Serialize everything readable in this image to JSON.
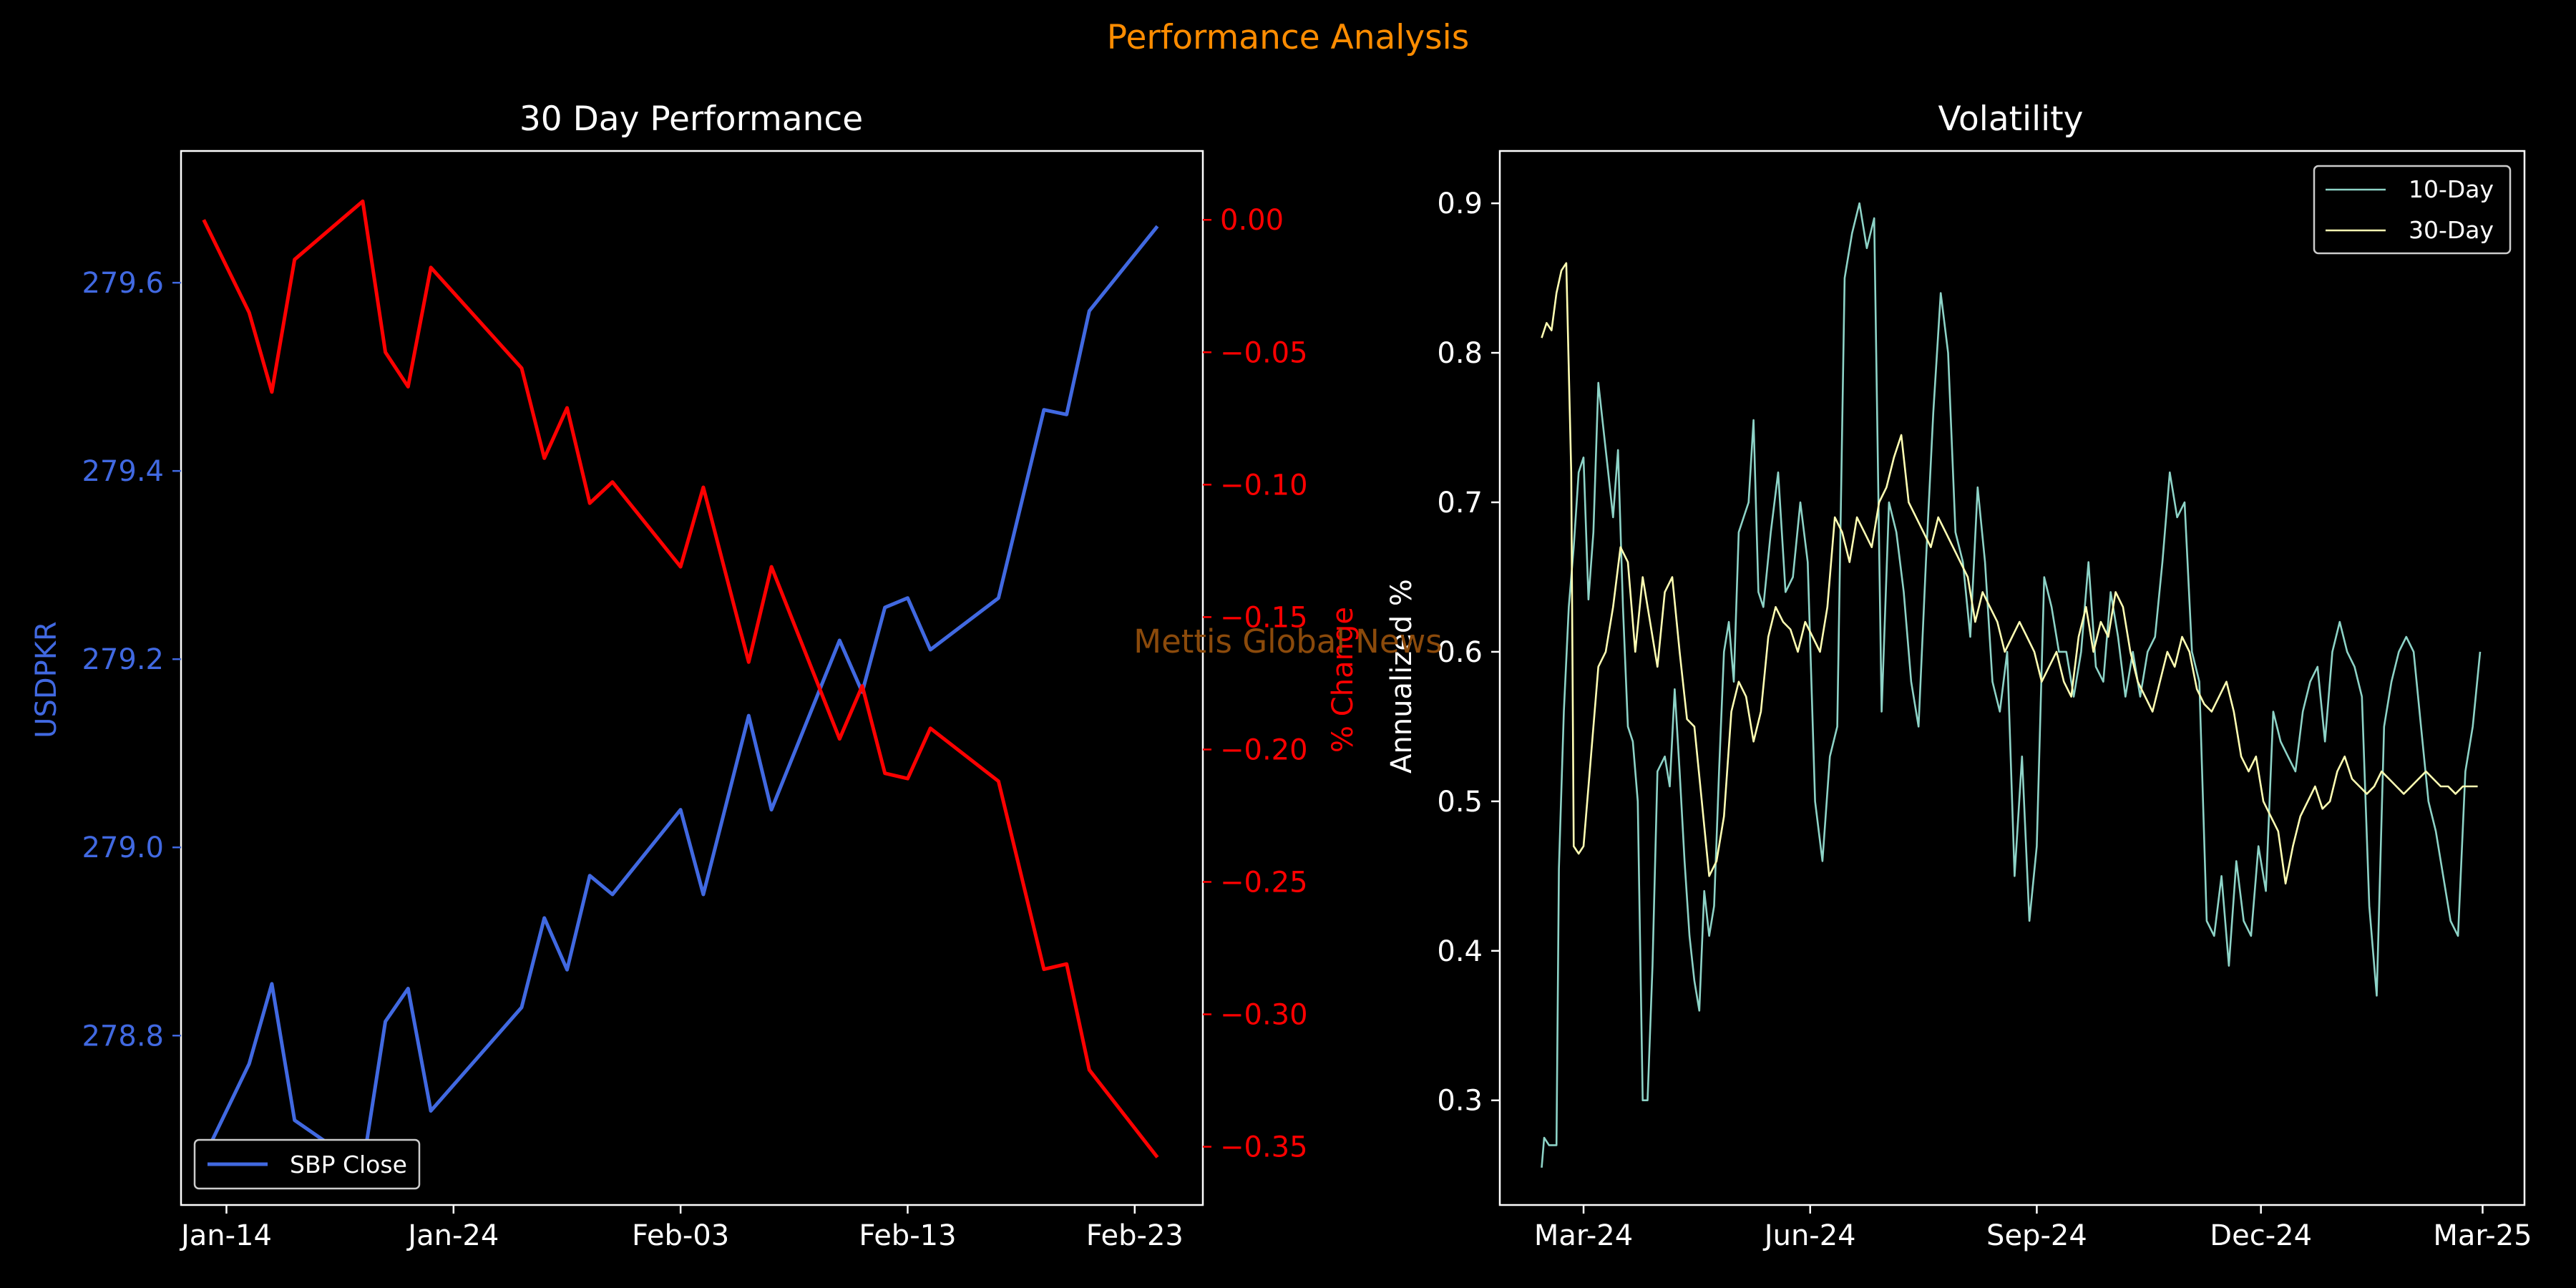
{
  "figure": {
    "title": "Performance Analysis",
    "watermark": "Mettis Global News",
    "background": "#000000",
    "title_color": "#ff8c00",
    "watermark_color": "#8b4a0b"
  },
  "chart_data": [
    {
      "type": "line",
      "title": "30 Day Performance",
      "xlabel": "",
      "ylabel": "USDPKR",
      "ylabel_right": "% Change",
      "x_ticks": [
        "Jan-14",
        "Jan-24",
        "Feb-03",
        "Feb-13",
        "Feb-23"
      ],
      "x_tick_days": [
        0,
        10,
        20,
        30,
        40
      ],
      "xlim_days": [
        -2,
        43
      ],
      "y_ticks": [
        "278.8",
        "279.0",
        "279.2",
        "279.4",
        "279.6"
      ],
      "ylim": [
        278.62,
        279.74
      ],
      "y2_ticks": [
        "0.00",
        "−0.05",
        "−0.10",
        "−0.15",
        "−0.20",
        "−0.25",
        "−0.30",
        "−0.35"
      ],
      "y2lim": [
        -0.372,
        0.026
      ],
      "legend": {
        "position": "lower-left",
        "entries": [
          "SBP Close"
        ]
      },
      "series": [
        {
          "name": "SBP Close",
          "axis": "left",
          "color": "#4169e1",
          "x_days": [
            -1,
            1,
            2,
            3,
            6,
            7,
            8,
            9,
            13,
            14,
            15,
            16,
            17,
            20,
            21,
            23,
            24,
            27,
            28,
            29,
            30,
            31,
            34,
            36,
            37,
            38,
            41
          ],
          "values": [
            278.67,
            278.77,
            278.855,
            278.71,
            278.66,
            278.815,
            278.85,
            278.72,
            278.83,
            278.925,
            278.87,
            278.97,
            278.95,
            279.04,
            278.95,
            279.14,
            279.04,
            279.22,
            279.165,
            279.255,
            279.265,
            279.21,
            279.265,
            279.465,
            279.46,
            279.57,
            279.66
          ]
        },
        {
          "name": "% Change",
          "axis": "right",
          "color": "#ff0000",
          "x_days": [
            -1,
            1,
            2,
            3,
            6,
            7,
            8,
            9,
            13,
            14,
            15,
            16,
            17,
            20,
            21,
            23,
            24,
            27,
            28,
            29,
            30,
            31,
            34,
            36,
            37,
            38,
            41
          ],
          "values": [
            0.0,
            -0.035,
            -0.065,
            -0.015,
            0.007,
            -0.05,
            -0.063,
            -0.018,
            -0.056,
            -0.09,
            -0.071,
            -0.107,
            -0.099,
            -0.131,
            -0.101,
            -0.167,
            -0.131,
            -0.196,
            -0.176,
            -0.209,
            -0.211,
            -0.192,
            -0.212,
            -0.283,
            -0.281,
            -0.321,
            -0.354
          ]
        }
      ]
    },
    {
      "type": "line",
      "title": "Volatility",
      "xlabel": "",
      "ylabel": "Annualized %",
      "x_ticks": [
        "Mar-24",
        "Jun-24",
        "Sep-24",
        "Dec-24",
        "Mar-25"
      ],
      "x_tick_days": [
        0,
        92,
        184,
        275,
        365
      ],
      "xlim_days": [
        -34,
        382
      ],
      "y_ticks": [
        "0.3",
        "0.4",
        "0.5",
        "0.6",
        "0.7",
        "0.8",
        "0.9"
      ],
      "ylim": [
        0.23,
        0.935
      ],
      "legend": {
        "position": "upper-right",
        "entries": [
          "10-Day",
          "30-Day"
        ]
      },
      "series": [
        {
          "name": "10-Day",
          "color": "#8dd3c7",
          "x_days": [
            -17,
            -16,
            -14,
            -11,
            -10,
            -8,
            -6,
            -4,
            -2,
            0,
            2,
            4,
            6,
            8,
            10,
            12,
            14,
            16,
            18,
            20,
            22,
            24,
            26,
            28,
            30,
            33,
            35,
            37,
            39,
            41,
            43,
            45,
            47,
            49,
            51,
            53,
            55,
            57,
            59,
            61,
            63,
            65,
            67,
            69,
            71,
            73,
            76,
            79,
            82,
            85,
            88,
            91,
            94,
            97,
            100,
            103,
            106,
            109,
            112,
            115,
            118,
            121,
            124,
            127,
            130,
            133,
            136,
            139,
            142,
            145,
            148,
            151,
            154,
            157,
            160,
            163,
            166,
            169,
            172,
            175,
            178,
            181,
            184,
            187,
            190,
            193,
            196,
            199,
            202,
            205,
            208,
            211,
            214,
            217,
            220,
            223,
            226,
            229,
            232,
            235,
            238,
            241,
            244,
            247,
            250,
            253,
            256,
            259,
            262,
            265,
            268,
            271,
            274,
            277,
            280,
            283,
            286,
            289,
            292,
            295,
            298,
            301,
            304,
            307,
            310,
            313,
            316,
            319,
            322,
            325,
            328,
            331,
            334,
            337,
            340,
            343,
            346,
            349,
            352,
            355,
            358,
            361,
            364
          ],
          "values": [
            0.255,
            0.275,
            0.27,
            0.27,
            0.455,
            0.56,
            0.63,
            0.67,
            0.72,
            0.73,
            0.635,
            0.68,
            0.78,
            0.75,
            0.72,
            0.69,
            0.735,
            0.63,
            0.55,
            0.54,
            0.5,
            0.3,
            0.3,
            0.39,
            0.52,
            0.53,
            0.51,
            0.575,
            0.52,
            0.46,
            0.41,
            0.38,
            0.36,
            0.44,
            0.41,
            0.43,
            0.52,
            0.6,
            0.62,
            0.58,
            0.68,
            0.69,
            0.7,
            0.755,
            0.64,
            0.63,
            0.68,
            0.72,
            0.64,
            0.65,
            0.7,
            0.66,
            0.5,
            0.46,
            0.53,
            0.55,
            0.85,
            0.88,
            0.9,
            0.87,
            0.89,
            0.56,
            0.7,
            0.68,
            0.64,
            0.58,
            0.55,
            0.66,
            0.76,
            0.84,
            0.8,
            0.68,
            0.66,
            0.61,
            0.71,
            0.66,
            0.58,
            0.56,
            0.6,
            0.45,
            0.53,
            0.42,
            0.47,
            0.65,
            0.63,
            0.6,
            0.6,
            0.57,
            0.6,
            0.66,
            0.59,
            0.58,
            0.64,
            0.61,
            0.57,
            0.6,
            0.57,
            0.6,
            0.61,
            0.66,
            0.72,
            0.69,
            0.7,
            0.6,
            0.58,
            0.42,
            0.41,
            0.45,
            0.39,
            0.46,
            0.42,
            0.41,
            0.47,
            0.44,
            0.56,
            0.54,
            0.53,
            0.52,
            0.56,
            0.58,
            0.59,
            0.54,
            0.6,
            0.62,
            0.6,
            0.59,
            0.57,
            0.43,
            0.37,
            0.55,
            0.58,
            0.6,
            0.61,
            0.6,
            0.55,
            0.5,
            0.48,
            0.45,
            0.42,
            0.41,
            0.52,
            0.55,
            0.6
          ]
        },
        {
          "name": "30-Day",
          "color": "#ffffb3",
          "x_days": [
            -17,
            -15,
            -13,
            -11,
            -9,
            -7,
            -5,
            -4,
            -2,
            0,
            3,
            6,
            9,
            12,
            15,
            18,
            21,
            24,
            27,
            30,
            33,
            36,
            39,
            42,
            45,
            48,
            51,
            54,
            57,
            60,
            63,
            66,
            69,
            72,
            75,
            78,
            81,
            84,
            87,
            90,
            93,
            96,
            99,
            102,
            105,
            108,
            111,
            114,
            117,
            120,
            123,
            126,
            129,
            132,
            135,
            138,
            141,
            144,
            147,
            150,
            153,
            156,
            159,
            162,
            165,
            168,
            171,
            174,
            177,
            180,
            183,
            186,
            189,
            192,
            195,
            198,
            201,
            204,
            207,
            210,
            213,
            216,
            219,
            222,
            225,
            228,
            231,
            234,
            237,
            240,
            243,
            246,
            249,
            252,
            255,
            258,
            261,
            264,
            267,
            270,
            273,
            276,
            279,
            282,
            285,
            288,
            291,
            294,
            297,
            300,
            303,
            306,
            309,
            312,
            315,
            318,
            321,
            324,
            327,
            330,
            333,
            336,
            339,
            342,
            345,
            348,
            351,
            354,
            357,
            360,
            363
          ],
          "values": [
            0.81,
            0.82,
            0.815,
            0.84,
            0.855,
            0.86,
            0.72,
            0.47,
            0.465,
            0.47,
            0.53,
            0.59,
            0.6,
            0.63,
            0.67,
            0.66,
            0.6,
            0.65,
            0.62,
            0.59,
            0.64,
            0.65,
            0.6,
            0.555,
            0.55,
            0.5,
            0.45,
            0.46,
            0.49,
            0.56,
            0.58,
            0.57,
            0.54,
            0.56,
            0.61,
            0.63,
            0.62,
            0.615,
            0.6,
            0.62,
            0.61,
            0.6,
            0.63,
            0.69,
            0.68,
            0.66,
            0.69,
            0.68,
            0.67,
            0.7,
            0.71,
            0.73,
            0.745,
            0.7,
            0.69,
            0.68,
            0.67,
            0.69,
            0.68,
            0.67,
            0.66,
            0.65,
            0.62,
            0.64,
            0.63,
            0.62,
            0.6,
            0.61,
            0.62,
            0.61,
            0.6,
            0.58,
            0.59,
            0.6,
            0.58,
            0.57,
            0.61,
            0.63,
            0.6,
            0.62,
            0.61,
            0.64,
            0.63,
            0.6,
            0.58,
            0.57,
            0.56,
            0.58,
            0.6,
            0.59,
            0.61,
            0.6,
            0.575,
            0.565,
            0.56,
            0.57,
            0.58,
            0.56,
            0.53,
            0.52,
            0.53,
            0.5,
            0.49,
            0.48,
            0.445,
            0.47,
            0.49,
            0.5,
            0.51,
            0.495,
            0.5,
            0.52,
            0.53,
            0.515,
            0.51,
            0.505,
            0.51,
            0.52,
            0.515,
            0.51,
            0.505,
            0.51,
            0.515,
            0.52,
            0.515,
            0.51,
            0.51,
            0.505,
            0.51,
            0.51,
            0.51
          ]
        }
      ]
    }
  ]
}
